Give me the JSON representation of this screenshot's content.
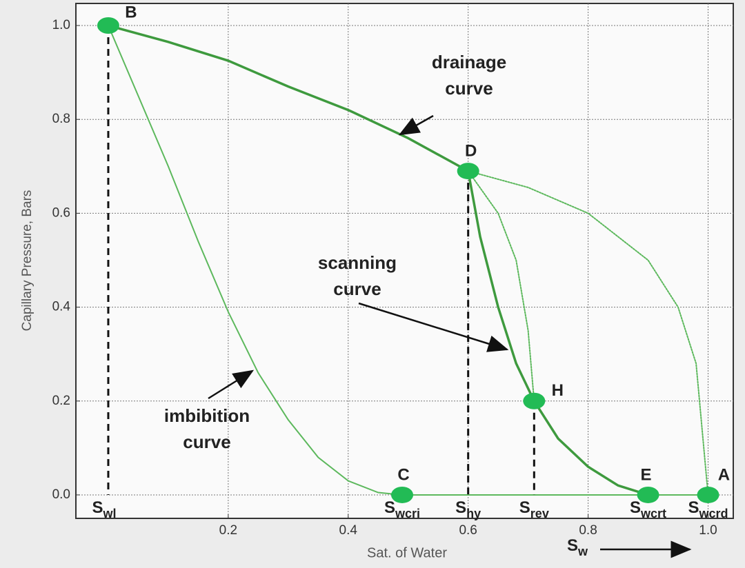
{
  "chart_data": {
    "type": "line",
    "x_label": "Sat. of Water",
    "y_label": "Capillary Pressure, Bars",
    "xlim": [
      -0.054,
      1.042
    ],
    "ylim": [
      -0.05,
      1.047
    ],
    "xticks": [
      0.2,
      0.4,
      0.6,
      0.8,
      {
        "value": 1,
        "label": "1.0"
      }
    ],
    "yticks": [
      {
        "value": 0,
        "label": "0.0"
      },
      0.2,
      0.4,
      0.6,
      0.8,
      {
        "value": 1,
        "label": "1.0"
      }
    ],
    "grid": true,
    "series": [
      {
        "style": "solid",
        "color": "#3e9a3e",
        "width": 3.5,
        "x": [
          0,
          0.1,
          0.2,
          0.3,
          0.4,
          0.5,
          0.6
        ],
        "y": [
          1,
          0.965,
          0.925,
          0.87,
          0.82,
          0.76,
          0.69
        ]
      },
      {
        "style": "dotted",
        "color": "#5cb85c",
        "width": 2,
        "x": [
          0.6,
          0.7,
          0.8,
          0.9,
          0.95,
          0.98,
          1.0
        ],
        "y": [
          0.69,
          0.655,
          0.6,
          0.5,
          0.4,
          0.28,
          0
        ]
      },
      {
        "style": "solid",
        "color": "#5cb85c",
        "width": 2,
        "x": [
          0,
          0.05,
          0.1,
          0.15,
          0.2,
          0.25,
          0.3,
          0.35,
          0.4,
          0.45,
          0.49
        ],
        "y": [
          1,
          0.85,
          0.7,
          0.54,
          0.39,
          0.26,
          0.16,
          0.08,
          0.03,
          0.005,
          0
        ]
      },
      {
        "style": "solid",
        "color": "#3e9a3e",
        "width": 3.5,
        "x": [
          0.6,
          0.62,
          0.65,
          0.68,
          0.71,
          0.75,
          0.8,
          0.85,
          0.9
        ],
        "y": [
          0.69,
          0.55,
          0.4,
          0.28,
          0.2,
          0.12,
          0.06,
          0.02,
          0
        ]
      },
      {
        "style": "dotted",
        "color": "#5cb85c",
        "width": 2,
        "x": [
          0.6,
          0.65,
          0.68,
          0.7,
          0.71
        ],
        "y": [
          0.69,
          0.6,
          0.5,
          0.35,
          0.2
        ]
      },
      {
        "style": "solid",
        "color": "#5cb85c",
        "width": 2,
        "x": [
          0.49,
          1.0
        ],
        "y": [
          0,
          0
        ]
      }
    ],
    "drop_lines": [
      {
        "x": 0,
        "y": 1
      },
      {
        "x": 0.6,
        "y": 0.69
      },
      {
        "x": 0.71,
        "y": 0.2
      }
    ],
    "points": [
      {
        "label": "B",
        "x": 0,
        "y": 1
      },
      {
        "label": "D",
        "x": 0.6,
        "y": 0.69
      },
      {
        "label": "H",
        "x": 0.71,
        "y": 0.2
      },
      {
        "label": "C",
        "x": 0.49,
        "y": 0
      },
      {
        "label": "E",
        "x": 0.9,
        "y": 0
      },
      {
        "label": "A",
        "x": 1.0,
        "y": 0
      }
    ],
    "point_color": "#22bb55",
    "saturation_labels": [
      {
        "symbol": "S",
        "subscript": "wl",
        "x": 0
      },
      {
        "symbol": "S",
        "subscript": "wcri",
        "x": 0.49
      },
      {
        "symbol": "S",
        "subscript": "hy",
        "x": 0.6
      },
      {
        "symbol": "S",
        "subscript": "rev",
        "x": 0.71
      },
      {
        "symbol": "S",
        "subscript": "wcrt",
        "x": 0.9
      },
      {
        "symbol": "S",
        "subscript": "wcrd",
        "x": 1.0
      }
    ],
    "annotations": [
      {
        "lines": [
          "drainage",
          "curve"
        ]
      },
      {
        "lines": [
          "scanning",
          "curve"
        ]
      },
      {
        "lines": [
          "imbibition",
          "curve"
        ]
      }
    ],
    "axis_symbol": {
      "symbol": "S",
      "subscript": "w"
    }
  }
}
